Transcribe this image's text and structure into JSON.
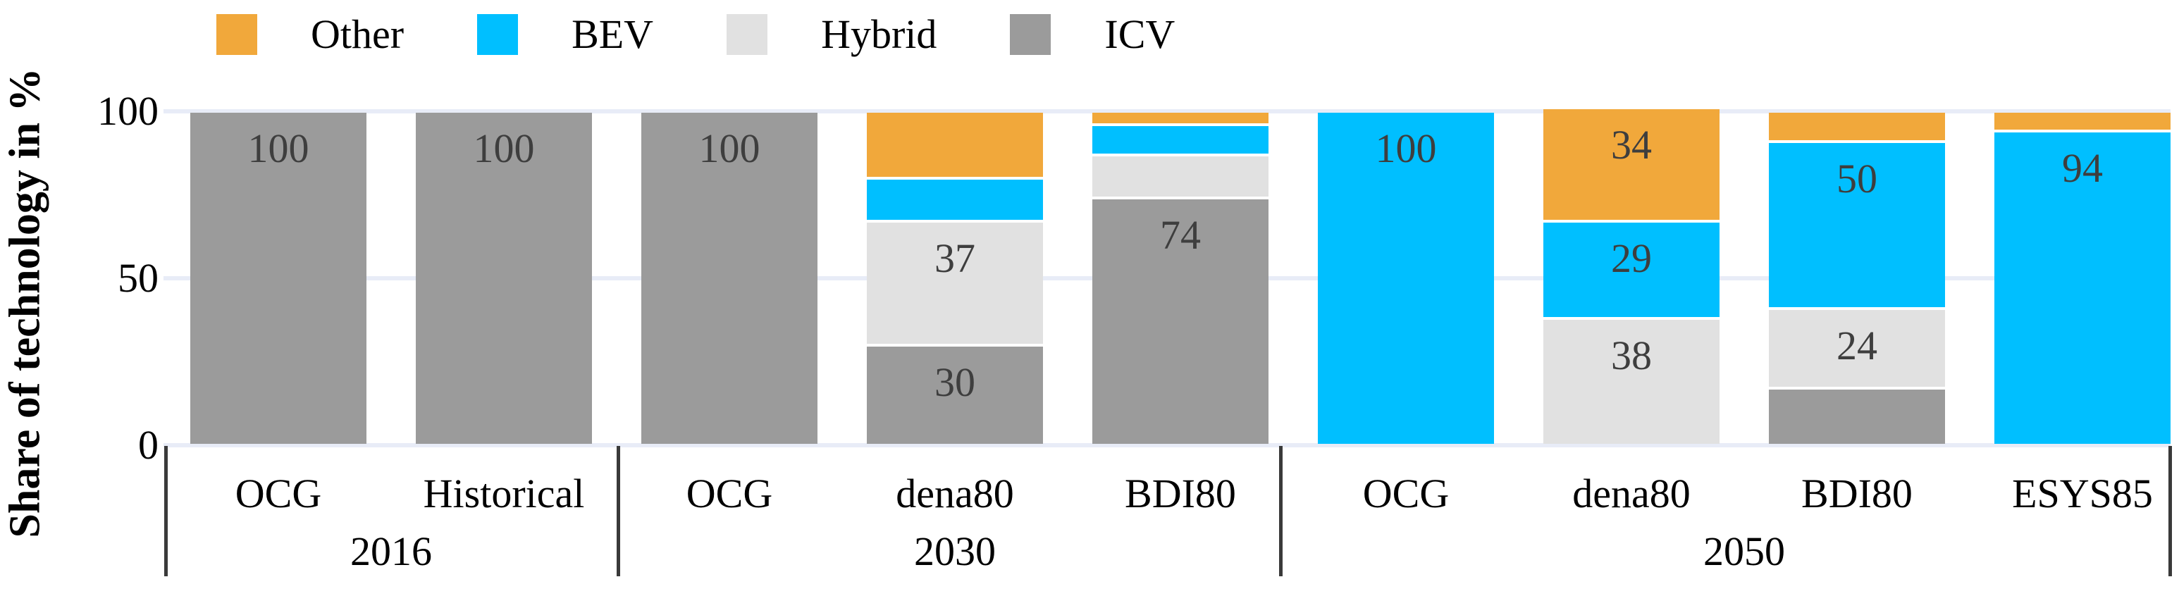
{
  "chart_data": {
    "type": "bar",
    "stacked": true,
    "title": "",
    "xlabel": "",
    "ylabel": "Share of technology in %",
    "ylim": [
      0,
      100
    ],
    "yticks": [
      0,
      50,
      100
    ],
    "grid": "horizontal",
    "legend_position": "top",
    "legend": [
      "Other",
      "BEV",
      "Hybrid",
      "ICV"
    ],
    "series_colors": {
      "Other": "#F1A83B",
      "BEV": "#00BFFF",
      "Hybrid": "#E1E1E1",
      "ICV": "#9B9B9B"
    },
    "groups": [
      {
        "label": "2016",
        "bars": [
          {
            "category": "OCG",
            "segments": [
              {
                "series": "ICV",
                "value": 100,
                "value_shown": true
              }
            ]
          },
          {
            "category": "Historical",
            "segments": [
              {
                "series": "ICV",
                "value": 100,
                "value_shown": true
              }
            ]
          }
        ]
      },
      {
        "label": "2030",
        "bars": [
          {
            "category": "OCG",
            "segments": [
              {
                "series": "ICV",
                "value": 100,
                "value_shown": true
              }
            ]
          },
          {
            "category": "dena80",
            "segments": [
              {
                "series": "ICV",
                "value": 30,
                "value_shown": true
              },
              {
                "series": "Hybrid",
                "value": 37,
                "value_shown": true
              },
              {
                "series": "BEV",
                "value": 13,
                "value_shown": false
              },
              {
                "series": "Other",
                "value": 20,
                "value_shown": false
              }
            ]
          },
          {
            "category": "BDI80",
            "segments": [
              {
                "series": "ICV",
                "value": 74,
                "value_shown": true
              },
              {
                "series": "Hybrid",
                "value": 13,
                "value_shown": false
              },
              {
                "series": "BEV",
                "value": 9,
                "value_shown": false
              },
              {
                "series": "Other",
                "value": 4,
                "value_shown": false
              }
            ]
          }
        ]
      },
      {
        "label": "2050",
        "bars": [
          {
            "category": "OCG",
            "segments": [
              {
                "series": "BEV",
                "value": 100,
                "value_shown": true
              }
            ]
          },
          {
            "category": "dena80",
            "segments": [
              {
                "series": "Hybrid",
                "value": 38,
                "value_shown": true
              },
              {
                "series": "BEV",
                "value": 29,
                "value_shown": true
              },
              {
                "series": "Other",
                "value": 34,
                "value_shown": true
              }
            ]
          },
          {
            "category": "BDI80",
            "segments": [
              {
                "series": "ICV",
                "value": 17,
                "value_shown": false
              },
              {
                "series": "Hybrid",
                "value": 24,
                "value_shown": true
              },
              {
                "series": "BEV",
                "value": 50,
                "value_shown": true
              },
              {
                "series": "Other",
                "value": 9,
                "value_shown": false
              }
            ]
          },
          {
            "category": "ESYS85",
            "segments": [
              {
                "series": "BEV",
                "value": 94,
                "value_shown": true
              },
              {
                "series": "Other",
                "value": 6,
                "value_shown": false
              }
            ]
          }
        ]
      }
    ],
    "colors": {
      "background": "#FFFFFF",
      "gridline": "#E8ECF7",
      "value_label": "#3E3E3E",
      "separator": "#3A3A3A",
      "axis_text": "#000000"
    }
  }
}
